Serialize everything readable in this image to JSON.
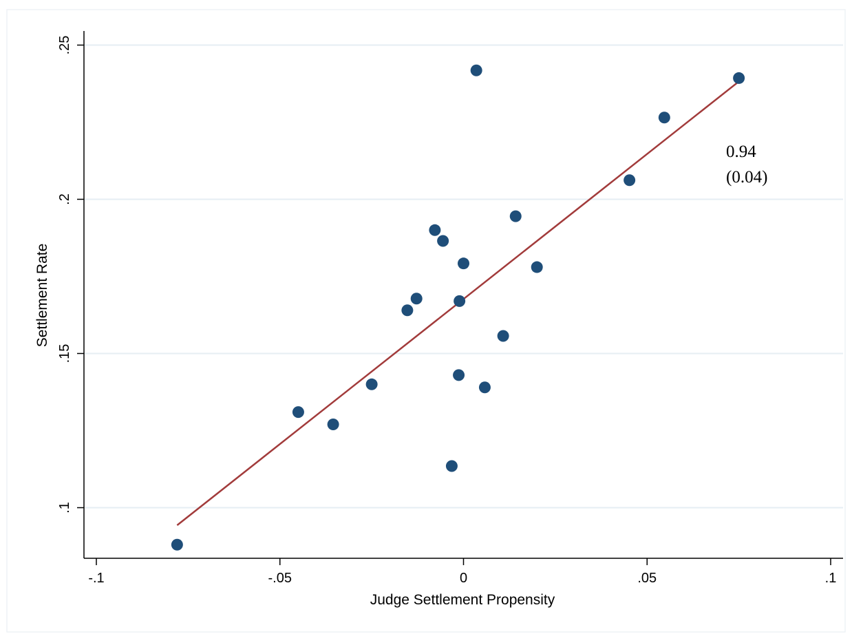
{
  "chart_data": {
    "type": "scatter",
    "xlabel": "Judge Settlement Propensity",
    "ylabel": "Settlement Rate",
    "xlim": [
      -0.1,
      0.1
    ],
    "ylim": [
      0.1,
      0.25
    ],
    "x_ticks": [
      {
        "value": -0.1,
        "label": "-.1"
      },
      {
        "value": -0.05,
        "label": "-.05"
      },
      {
        "value": 0,
        "label": "0"
      },
      {
        "value": 0.05,
        "label": ".05"
      },
      {
        "value": 0.1,
        "label": ".1"
      }
    ],
    "y_ticks": [
      {
        "value": 0.1,
        "label": ".1"
      },
      {
        "value": 0.15,
        "label": ".15"
      },
      {
        "value": 0.2,
        "label": ".2"
      },
      {
        "value": 0.25,
        "label": ".25"
      }
    ],
    "grid": "horizontal",
    "points": [
      {
        "x": -0.078,
        "y": 0.088
      },
      {
        "x": -0.045,
        "y": 0.131
      },
      {
        "x": -0.0355,
        "y": 0.127
      },
      {
        "x": -0.025,
        "y": 0.14
      },
      {
        "x": -0.0153,
        "y": 0.164
      },
      {
        "x": -0.0128,
        "y": 0.1678
      },
      {
        "x": -0.0078,
        "y": 0.19
      },
      {
        "x": -0.0056,
        "y": 0.1865
      },
      {
        "x": -0.0032,
        "y": 0.1135
      },
      {
        "x": -0.0013,
        "y": 0.143
      },
      {
        "x": -0.0011,
        "y": 0.167
      },
      {
        "x": 0.0,
        "y": 0.1792
      },
      {
        "x": 0.0035,
        "y": 0.2418
      },
      {
        "x": 0.0058,
        "y": 0.139
      },
      {
        "x": 0.0108,
        "y": 0.1557
      },
      {
        "x": 0.0142,
        "y": 0.1945
      },
      {
        "x": 0.02,
        "y": 0.178
      },
      {
        "x": 0.0452,
        "y": 0.2062
      },
      {
        "x": 0.0547,
        "y": 0.2265
      },
      {
        "x": 0.075,
        "y": 0.2393
      }
    ],
    "fit_line": {
      "x": [
        -0.078,
        0.075
      ],
      "y": [
        0.0943,
        0.2382
      ]
    },
    "annotation": {
      "line1": "0.94",
      "line2": "(0.04)"
    },
    "colors": {
      "points": "#1f4e79",
      "fit_line": "#a23b3b",
      "grid": "#e6eef3",
      "frame": "#eef2f5"
    }
  }
}
